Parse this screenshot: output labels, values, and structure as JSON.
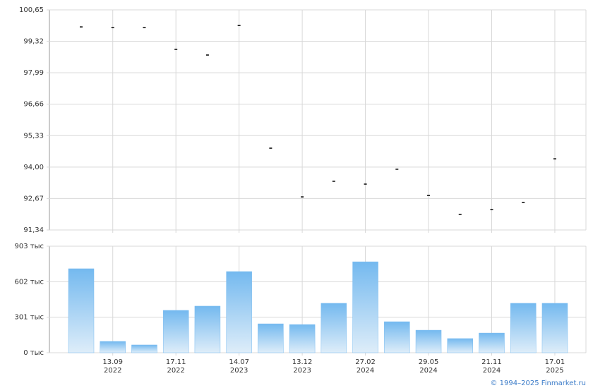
{
  "chart_data": [
    {
      "type": "point",
      "values": [
        99.93,
        99.9,
        99.9,
        98.98,
        98.74,
        99.99,
        94.8,
        92.74,
        93.4,
        93.28,
        93.91,
        92.8,
        92.0,
        92.2,
        92.5,
        94.35
      ],
      "color": "#000000",
      "ylim": [
        91.34,
        100.65
      ],
      "yticks": [
        {
          "value": 91.34,
          "label": "91,34"
        },
        {
          "value": 92.67,
          "label": "92,67"
        },
        {
          "value": 94.0,
          "label": "94,00"
        },
        {
          "value": 95.33,
          "label": "95,33"
        },
        {
          "value": 96.66,
          "label": "96,66"
        },
        {
          "value": 97.99,
          "label": "97,99"
        },
        {
          "value": 99.32,
          "label": "99,32"
        },
        {
          "value": 100.65,
          "label": "100,65"
        }
      ],
      "grid": true
    },
    {
      "type": "bar",
      "categories": [
        null,
        "13.09 2022",
        null,
        "17.11 2022",
        null,
        "14.07 2023",
        null,
        "13.12 2023",
        null,
        "27.02 2024",
        null,
        "29.05 2024",
        null,
        "21.11 2024",
        null,
        "17.01 2025"
      ],
      "values": [
        712,
        96,
        66,
        359,
        395,
        688,
        245,
        239,
        419,
        771,
        263,
        191,
        120,
        167,
        419,
        419
      ],
      "color": "#7bbcf0",
      "ylim": [
        0,
        903
      ],
      "yticks": [
        {
          "value": 0,
          "label": "0 тыс"
        },
        {
          "value": 301,
          "label": "301 тыс"
        },
        {
          "value": 602,
          "label": "602 тыс"
        },
        {
          "value": 903,
          "label": "903 тыс"
        }
      ],
      "grid": true
    }
  ],
  "footer": "© 1994–2025 Finmarket.ru"
}
